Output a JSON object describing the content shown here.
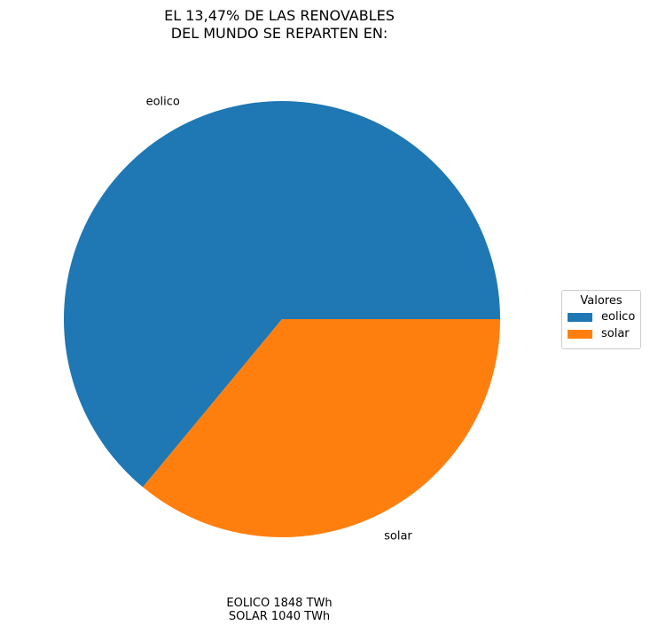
{
  "chart_data": {
    "type": "pie",
    "title_lines": [
      "EL 13,47% DE LAS RENOVABLES",
      "DEL MUNDO SE REPARTEN EN:"
    ],
    "labels": [
      "eolico",
      "solar"
    ],
    "values": [
      1848,
      1040
    ],
    "colors": [
      "#1f77b4",
      "#ff7f0e"
    ],
    "legend": {
      "title": "Valores",
      "placement": "right",
      "entries": [
        "eolico",
        "solar"
      ]
    },
    "start_angle_deg": 0,
    "direction": "counterclockwise"
  },
  "footnote": {
    "lines": [
      "EOLICO 1848 TWh",
      "SOLAR 1040 TWh"
    ]
  }
}
